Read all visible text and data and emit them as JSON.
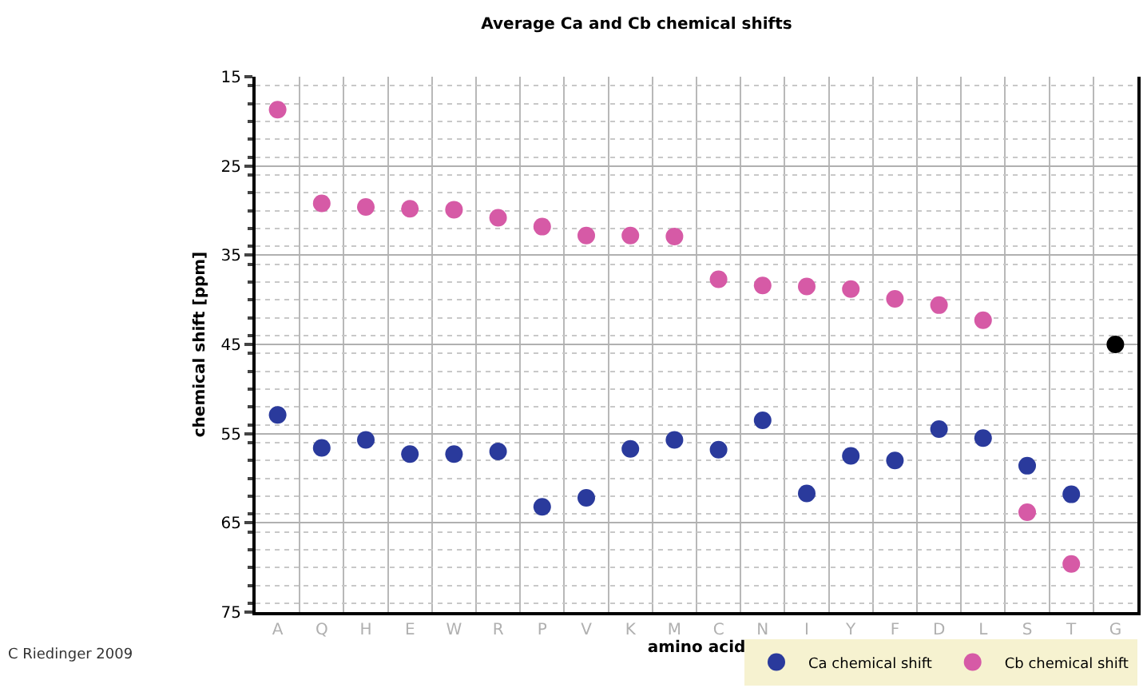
{
  "chart_data": {
    "type": "scatter",
    "title": "Average Ca and Cb chemical shifts",
    "xlabel": "amino acid",
    "ylabel": "chemical shift [ppm]",
    "categories": [
      "A",
      "Q",
      "H",
      "E",
      "W",
      "R",
      "P",
      "V",
      "K",
      "M",
      "C",
      "N",
      "I",
      "Y",
      "F",
      "D",
      "L",
      "S",
      "T",
      "G"
    ],
    "series": [
      {
        "name": "Ca chemical shift",
        "color": "#2a3a9c",
        "colors": [
          "#2a3a9c",
          "#2a3a9c",
          "#2a3a9c",
          "#2a3a9c",
          "#2a3a9c",
          "#2a3a9c",
          "#2a3a9c",
          "#2a3a9c",
          "#2a3a9c",
          "#2a3a9c",
          "#2a3a9c",
          "#2a3a9c",
          "#2a3a9c",
          "#2a3a9c",
          "#2a3a9c",
          "#2a3a9c",
          "#2a3a9c",
          "#2a3a9c",
          "#2a3a9c",
          "#000000"
        ],
        "values": [
          52.9,
          56.6,
          55.7,
          57.3,
          57.3,
          57.0,
          63.2,
          62.2,
          56.7,
          55.7,
          56.8,
          53.5,
          61.7,
          57.5,
          58.0,
          54.5,
          55.5,
          58.6,
          61.8,
          45.0
        ]
      },
      {
        "name": "Cb chemical shift",
        "color": "#d65aa6",
        "values": [
          18.7,
          29.2,
          29.6,
          29.8,
          29.9,
          30.8,
          31.8,
          32.8,
          32.8,
          32.9,
          37.7,
          38.4,
          38.5,
          38.8,
          39.9,
          40.6,
          42.3,
          63.8,
          69.6,
          null
        ]
      }
    ],
    "ylim": [
      75,
      15
    ],
    "yticks": [
      15,
      25,
      35,
      45,
      55,
      65,
      75
    ],
    "grid": true,
    "legend": "bottom right",
    "marker": "circle",
    "annotations": [
      "C Riedinger 2009"
    ]
  }
}
